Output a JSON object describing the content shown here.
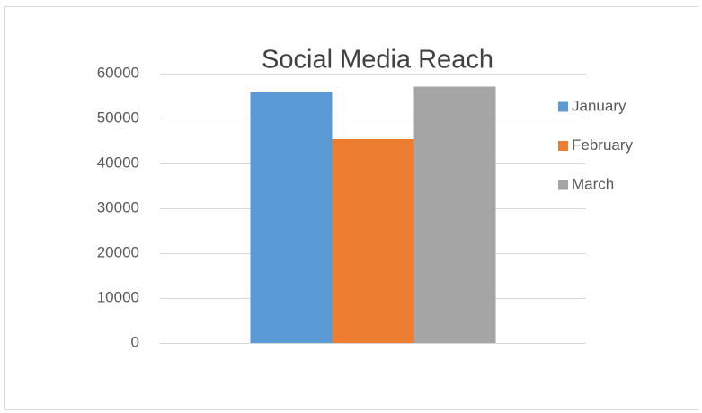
{
  "chart_data": {
    "type": "bar",
    "title": "Social Media Reach",
    "categories": [
      null
    ],
    "series": [
      {
        "name": "January",
        "color": "#5b9bd5",
        "values": [
          55800
        ]
      },
      {
        "name": "February",
        "color": "#ed7d31",
        "values": [
          45400
        ]
      },
      {
        "name": "March",
        "color": "#a5a5a5",
        "values": [
          57100
        ]
      }
    ],
    "ylim": [
      0,
      60000
    ],
    "yticks": [
      0,
      10000,
      20000,
      30000,
      40000,
      50000,
      60000
    ],
    "grid": true,
    "legend": "right"
  }
}
